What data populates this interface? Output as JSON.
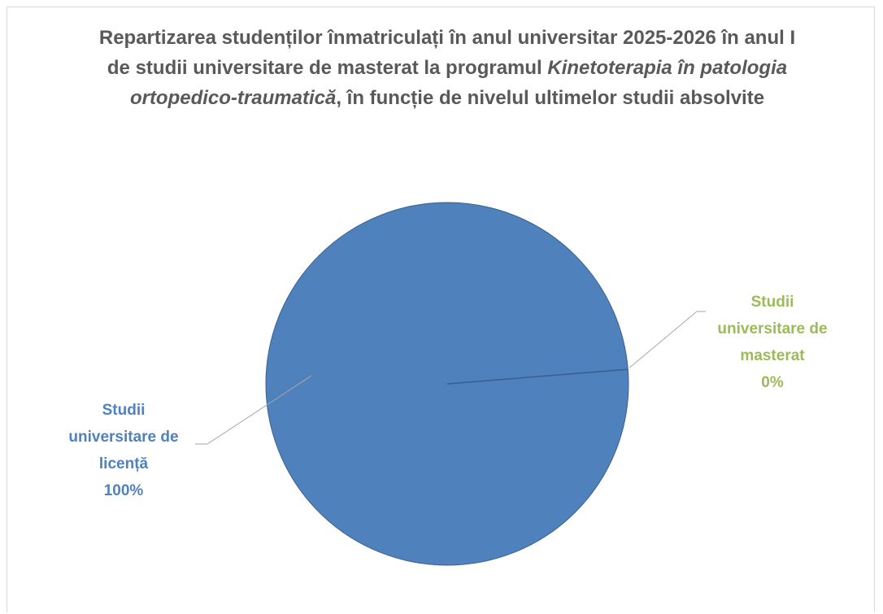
{
  "chart_data": {
    "type": "pie",
    "title": [
      "Repartizarea studenților înmatriculați în anul universitar 2025-2026 în anul I de studii universitare de masterat la programul ",
      "Kinetoterapia în patologia ortopedico-traumatică",
      ", în funcție de nivelul ultimelor studii absolvite"
    ],
    "categories": [
      "Studii universitare de licență",
      "Studii universitare de masterat"
    ],
    "values": [
      100,
      0
    ],
    "value_labels": [
      "100%",
      "0%"
    ],
    "colors": [
      "#4f81bd",
      "#9bbb59"
    ]
  }
}
